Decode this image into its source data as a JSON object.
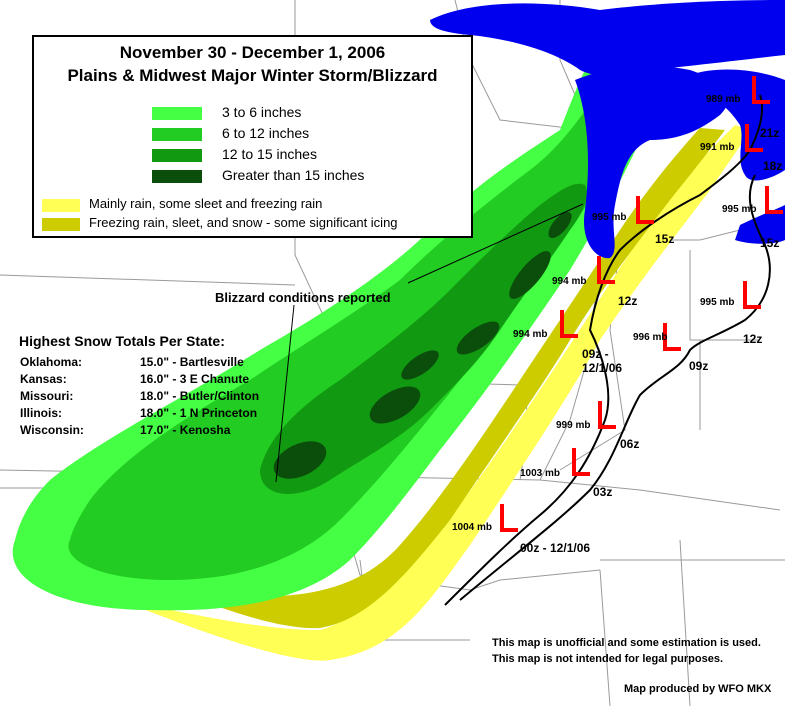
{
  "legend": {
    "title_line1": "November 30 - December 1, 2006",
    "title_line2": "Plains & Midwest Major Winter Storm/Blizzard",
    "items": [
      {
        "label": "3 to 6 inches",
        "color": "#44ff44"
      },
      {
        "label": "6 to 12 inches",
        "color": "#22cc22"
      },
      {
        "label": "12 to 15 inches",
        "color": "#119911"
      },
      {
        "label": "Greater than 15 inches",
        "color": "#0b4d0b"
      },
      {
        "label": "Mainly rain, some sleet and freezing rain",
        "color": "#ffff55"
      },
      {
        "label": "Freezing rain, sleet, and snow - some significant icing",
        "color": "#cccc00"
      }
    ]
  },
  "snow_totals": {
    "title": "Highest Snow Totals Per State:",
    "rows": [
      {
        "state": "Oklahoma:",
        "value": "15.0\" - Bartlesville"
      },
      {
        "state": "Kansas:",
        "value": "16.0\" - 3 E Chanute"
      },
      {
        "state": "Missouri:",
        "value": "18.0\" - Butler/Clinton"
      },
      {
        "state": "Illinois:",
        "value": "18.0\" - 1 N Princeton"
      },
      {
        "state": "Wisconsin:",
        "value": "17.0\" - Kenosha"
      }
    ]
  },
  "annotation": {
    "blizzard": "Blizzard conditions reported"
  },
  "notes": {
    "line1": "This map is unofficial and some estimation is used.",
    "line2": "This map is not intended for legal purposes.",
    "credit": "Map produced by WFO MKX"
  },
  "low_track": {
    "symbol_color": "#ff0000",
    "positions": [
      {
        "pressure": "1004 mb",
        "time": "00z - 12/1/06"
      },
      {
        "pressure": "1003 mb",
        "time": "03z"
      },
      {
        "pressure": "999 mb",
        "time": "06z"
      },
      {
        "pressure": "994 mb",
        "time": "09z -\n12/1/06"
      },
      {
        "pressure": "994 mb",
        "time": "12z"
      },
      {
        "pressure": "995 mb",
        "time": "15z"
      },
      {
        "pressure": "991 mb",
        "time": "18z"
      },
      {
        "pressure": "989 mb",
        "time": "21z"
      }
    ],
    "second_low": [
      {
        "pressure": "996 mb",
        "time": "09z"
      },
      {
        "pressure": "995 mb",
        "time": "12z"
      },
      {
        "pressure": "995 mb",
        "time": "15z"
      }
    ]
  },
  "colors": {
    "lake": "#0000ee",
    "border": "#999999"
  }
}
